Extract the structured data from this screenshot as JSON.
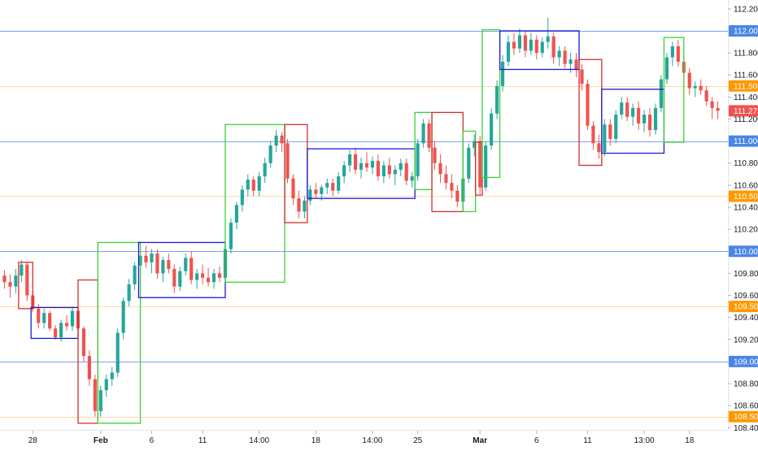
{
  "chart_data": {
    "type": "candlestick",
    "y_axis": {
      "position": "right",
      "range": [
        108.38,
        112.28
      ],
      "tick_labels": [
        "112.200",
        "111.800",
        "111.600",
        "111.400",
        "111.200",
        "110.800",
        "110.600",
        "110.400",
        "110.200",
        "109.800",
        "109.600",
        "109.400",
        "109.200",
        "108.800",
        "108.600",
        "108.400"
      ],
      "tick_values": [
        112.2,
        111.8,
        111.6,
        111.4,
        111.2,
        110.8,
        110.6,
        110.4,
        110.2,
        109.8,
        109.6,
        109.4,
        109.2,
        108.8,
        108.6,
        108.4
      ]
    },
    "x_axis": {
      "tick_labels": [
        "28",
        "Feb",
        "6",
        "11",
        "14:00",
        "18",
        "14:00",
        "25",
        "Mar",
        "6",
        "11",
        "13:00",
        "18"
      ],
      "tick_bold": [
        false,
        true,
        false,
        false,
        false,
        false,
        false,
        false,
        true,
        false,
        false,
        false,
        false
      ],
      "bar_index": [
        5,
        17,
        26,
        35,
        45,
        55,
        65,
        73,
        84,
        94,
        103,
        113,
        121
      ],
      "bar_count": 128
    },
    "horizontal_levels": [
      {
        "value": 112.0,
        "label": "112.000",
        "color": "#4a86e8",
        "kind": "major"
      },
      {
        "value": 111.5,
        "label": "111.500",
        "color": "#ff9800",
        "kind": "minor"
      },
      {
        "value": 111.0,
        "label": "111.000",
        "color": "#4a86e8",
        "kind": "major"
      },
      {
        "value": 110.5,
        "label": "110.500",
        "color": "#ff9800",
        "kind": "minor"
      },
      {
        "value": 110.0,
        "label": "110.000",
        "color": "#4a86e8",
        "kind": "major"
      },
      {
        "value": 109.5,
        "label": "109.500",
        "color": "#ff9800",
        "kind": "minor"
      },
      {
        "value": 109.0,
        "label": "109.000",
        "color": "#4a86e8",
        "kind": "major"
      },
      {
        "value": 108.5,
        "label": "108.500",
        "color": "#ff9800",
        "kind": "minor"
      }
    ],
    "last_price": {
      "value": 111.275,
      "label": "111.275",
      "color": "#ef5350"
    },
    "colors": {
      "up": "#26a69a",
      "down": "#ef5350",
      "box_up": "#3ad13a",
      "box_down": "#d32f2f",
      "box_range": "#1a1ad6"
    },
    "boxes": [
      {
        "kind": "down",
        "x0": 3,
        "x1": 5.5,
        "y_top": 109.9,
        "y_bottom": 109.48
      },
      {
        "kind": "range",
        "x0": 5.2,
        "x1": 13.5,
        "y_top": 109.49,
        "y_bottom": 109.21
      },
      {
        "kind": "down",
        "x0": 13.5,
        "x1": 17,
        "y_top": 109.74,
        "y_bottom": 108.44
      },
      {
        "kind": "up",
        "x0": 17,
        "x1": 24.5,
        "y_top": 110.08,
        "y_bottom": 108.44
      },
      {
        "kind": "range",
        "x0": 24.2,
        "x1": 39.5,
        "y_top": 110.08,
        "y_bottom": 109.58
      },
      {
        "kind": "up",
        "x0": 39.5,
        "x1": 50,
        "y_top": 111.15,
        "y_bottom": 109.72
      },
      {
        "kind": "down",
        "x0": 50,
        "x1": 54,
        "y_top": 111.15,
        "y_bottom": 110.26
      },
      {
        "kind": "range",
        "x0": 54,
        "x1": 73,
        "y_top": 110.93,
        "y_bottom": 110.48
      },
      {
        "kind": "up",
        "x0": 73,
        "x1": 76,
        "y_top": 111.26,
        "y_bottom": 110.56
      },
      {
        "kind": "down",
        "x0": 76,
        "x1": 81.5,
        "y_top": 111.26,
        "y_bottom": 110.36
      },
      {
        "kind": "up",
        "x0": 81.5,
        "x1": 83.7,
        "y_top": 111.09,
        "y_bottom": 110.36
      },
      {
        "kind": "down",
        "x0": 83.7,
        "x1": 84.9,
        "y_top": 110.99,
        "y_bottom": 110.51
      },
      {
        "kind": "up",
        "x0": 84.9,
        "x1": 88,
        "y_top": 112.01,
        "y_bottom": 110.67
      },
      {
        "kind": "range",
        "x0": 88,
        "x1": 102,
        "y_top": 112.0,
        "y_bottom": 111.65
      },
      {
        "kind": "down",
        "x0": 102,
        "x1": 106,
        "y_top": 111.74,
        "y_bottom": 110.78
      },
      {
        "kind": "range",
        "x0": 106,
        "x1": 117,
        "y_top": 111.47,
        "y_bottom": 110.89
      },
      {
        "kind": "up",
        "x0": 117,
        "x1": 120.5,
        "y_top": 111.94,
        "y_bottom": 110.99
      }
    ],
    "candles": [
      [
        109.78,
        109.83,
        109.66,
        109.72
      ],
      [
        109.72,
        109.79,
        109.58,
        109.68
      ],
      [
        109.68,
        109.84,
        109.62,
        109.78
      ],
      [
        109.78,
        109.92,
        109.72,
        109.88
      ],
      [
        109.88,
        109.9,
        109.55,
        109.6
      ],
      [
        109.6,
        109.64,
        109.45,
        109.48
      ],
      [
        109.48,
        109.52,
        109.3,
        109.35
      ],
      [
        109.35,
        109.48,
        109.3,
        109.44
      ],
      [
        109.44,
        109.46,
        109.28,
        109.3
      ],
      [
        109.3,
        109.33,
        109.2,
        109.22
      ],
      [
        109.22,
        109.38,
        109.18,
        109.35
      ],
      [
        109.35,
        109.42,
        109.28,
        109.32
      ],
      [
        109.32,
        109.5,
        109.28,
        109.46
      ],
      [
        109.46,
        109.5,
        109.25,
        109.3
      ],
      [
        109.3,
        109.32,
        109.0,
        109.05
      ],
      [
        109.05,
        109.1,
        108.78,
        108.84
      ],
      [
        108.84,
        108.88,
        108.5,
        108.55
      ],
      [
        108.55,
        108.78,
        108.5,
        108.74
      ],
      [
        108.74,
        108.88,
        108.68,
        108.84
      ],
      [
        108.84,
        108.95,
        108.78,
        108.9
      ],
      [
        108.9,
        109.3,
        108.86,
        109.26
      ],
      [
        109.26,
        109.58,
        109.2,
        109.55
      ],
      [
        109.55,
        109.75,
        109.5,
        109.7
      ],
      [
        109.7,
        109.9,
        109.65,
        109.87
      ],
      [
        109.87,
        110.02,
        109.82,
        109.96
      ],
      [
        109.96,
        110.05,
        109.85,
        109.9
      ],
      [
        109.9,
        110.02,
        109.8,
        109.98
      ],
      [
        109.98,
        110.02,
        109.75,
        109.8
      ],
      [
        109.8,
        109.95,
        109.72,
        109.92
      ],
      [
        109.92,
        109.98,
        109.8,
        109.84
      ],
      [
        109.84,
        109.88,
        109.62,
        109.68
      ],
      [
        109.68,
        109.86,
        109.64,
        109.82
      ],
      [
        109.82,
        109.98,
        109.78,
        109.94
      ],
      [
        109.94,
        110.0,
        109.7,
        109.74
      ],
      [
        109.74,
        109.84,
        109.66,
        109.8
      ],
      [
        109.8,
        109.88,
        109.7,
        109.76
      ],
      [
        109.76,
        109.85,
        109.68,
        109.72
      ],
      [
        109.72,
        109.84,
        109.66,
        109.8
      ],
      [
        109.8,
        109.86,
        109.72,
        109.76
      ],
      [
        109.76,
        110.05,
        109.74,
        110.02
      ],
      [
        110.02,
        110.3,
        109.98,
        110.26
      ],
      [
        110.26,
        110.45,
        110.2,
        110.42
      ],
      [
        110.42,
        110.6,
        110.36,
        110.56
      ],
      [
        110.56,
        110.7,
        110.5,
        110.65
      ],
      [
        110.65,
        110.68,
        110.5,
        110.55
      ],
      [
        110.55,
        110.72,
        110.5,
        110.68
      ],
      [
        110.68,
        110.85,
        110.62,
        110.8
      ],
      [
        110.8,
        111.0,
        110.76,
        110.96
      ],
      [
        110.96,
        111.1,
        110.9,
        111.05
      ],
      [
        111.05,
        111.08,
        110.9,
        110.98
      ],
      [
        110.98,
        111.02,
        110.62,
        110.66
      ],
      [
        110.66,
        110.7,
        110.42,
        110.48
      ],
      [
        110.48,
        110.55,
        110.3,
        110.36
      ],
      [
        110.36,
        110.5,
        110.3,
        110.46
      ],
      [
        110.46,
        110.6,
        110.42,
        110.56
      ],
      [
        110.56,
        110.62,
        110.48,
        110.52
      ],
      [
        110.52,
        110.6,
        110.46,
        110.58
      ],
      [
        110.58,
        110.66,
        110.52,
        110.62
      ],
      [
        110.62,
        110.66,
        110.5,
        110.55
      ],
      [
        110.55,
        110.72,
        110.52,
        110.68
      ],
      [
        110.68,
        110.82,
        110.62,
        110.78
      ],
      [
        110.78,
        110.92,
        110.72,
        110.88
      ],
      [
        110.88,
        110.94,
        110.7,
        110.74
      ],
      [
        110.74,
        110.85,
        110.66,
        110.8
      ],
      [
        110.8,
        110.9,
        110.72,
        110.76
      ],
      [
        110.76,
        110.86,
        110.7,
        110.82
      ],
      [
        110.82,
        110.88,
        110.64,
        110.68
      ],
      [
        110.68,
        110.82,
        110.62,
        110.78
      ],
      [
        110.78,
        110.85,
        110.66,
        110.7
      ],
      [
        110.7,
        110.78,
        110.6,
        110.74
      ],
      [
        110.74,
        110.84,
        110.68,
        110.8
      ],
      [
        110.8,
        110.84,
        110.6,
        110.64
      ],
      [
        110.64,
        110.72,
        110.58,
        110.68
      ],
      [
        110.68,
        111.02,
        110.64,
        110.98
      ],
      [
        110.98,
        111.2,
        110.94,
        111.16
      ],
      [
        111.16,
        111.2,
        110.9,
        110.94
      ],
      [
        110.94,
        111.0,
        110.74,
        110.8
      ],
      [
        110.8,
        110.88,
        110.62,
        110.7
      ],
      [
        110.7,
        110.78,
        110.56,
        110.62
      ],
      [
        110.62,
        110.7,
        110.48,
        110.55
      ],
      [
        110.55,
        110.6,
        110.4,
        110.45
      ],
      [
        110.45,
        110.7,
        110.42,
        110.66
      ],
      [
        110.66,
        110.98,
        110.62,
        110.94
      ],
      [
        110.94,
        111.06,
        110.86,
        111.0
      ],
      [
        111.0,
        111.05,
        110.52,
        110.58
      ],
      [
        110.58,
        111.0,
        110.55,
        110.96
      ],
      [
        110.96,
        111.3,
        110.92,
        111.25
      ],
      [
        111.25,
        111.55,
        111.2,
        111.5
      ],
      [
        111.5,
        111.78,
        111.45,
        111.72
      ],
      [
        111.72,
        111.96,
        111.68,
        111.9
      ],
      [
        111.9,
        111.98,
        111.78,
        111.84
      ],
      [
        111.84,
        112.02,
        111.8,
        111.96
      ],
      [
        111.96,
        112.0,
        111.76,
        111.82
      ],
      [
        111.82,
        111.98,
        111.78,
        111.92
      ],
      [
        111.92,
        111.96,
        111.74,
        111.8
      ],
      [
        111.8,
        111.94,
        111.76,
        111.9
      ],
      [
        111.9,
        112.12,
        111.84,
        111.95
      ],
      [
        111.95,
        111.98,
        111.7,
        111.76
      ],
      [
        111.76,
        111.86,
        111.68,
        111.82
      ],
      [
        111.82,
        111.86,
        111.66,
        111.7
      ],
      [
        111.7,
        111.8,
        111.62,
        111.74
      ],
      [
        111.74,
        111.8,
        111.58,
        111.65
      ],
      [
        111.65,
        111.7,
        111.46,
        111.52
      ],
      [
        111.52,
        111.56,
        111.1,
        111.14
      ],
      [
        111.14,
        111.18,
        110.92,
        110.98
      ],
      [
        110.98,
        111.06,
        110.84,
        110.9
      ],
      [
        110.9,
        111.2,
        110.86,
        111.15
      ],
      [
        111.15,
        111.2,
        110.96,
        111.02
      ],
      [
        111.02,
        111.28,
        110.98,
        111.24
      ],
      [
        111.24,
        111.4,
        111.2,
        111.35
      ],
      [
        111.35,
        111.4,
        111.18,
        111.22
      ],
      [
        111.22,
        111.34,
        111.14,
        111.3
      ],
      [
        111.3,
        111.36,
        111.1,
        111.16
      ],
      [
        111.16,
        111.28,
        111.08,
        111.24
      ],
      [
        111.24,
        111.3,
        111.04,
        111.1
      ],
      [
        111.1,
        111.34,
        111.06,
        111.3
      ],
      [
        111.3,
        111.6,
        111.26,
        111.56
      ],
      [
        111.56,
        111.8,
        111.52,
        111.76
      ],
      [
        111.76,
        111.9,
        111.68,
        111.86
      ],
      [
        111.86,
        111.92,
        111.68,
        111.72
      ],
      [
        111.72,
        111.76,
        111.56,
        111.62
      ],
      [
        111.62,
        111.66,
        111.42,
        111.48
      ],
      [
        111.48,
        111.54,
        111.4,
        111.5
      ],
      [
        111.5,
        111.56,
        111.42,
        111.46
      ],
      [
        111.46,
        111.5,
        111.32,
        111.36
      ],
      [
        111.36,
        111.4,
        111.2,
        111.3
      ],
      [
        111.3,
        111.36,
        111.2,
        111.275
      ]
    ]
  }
}
